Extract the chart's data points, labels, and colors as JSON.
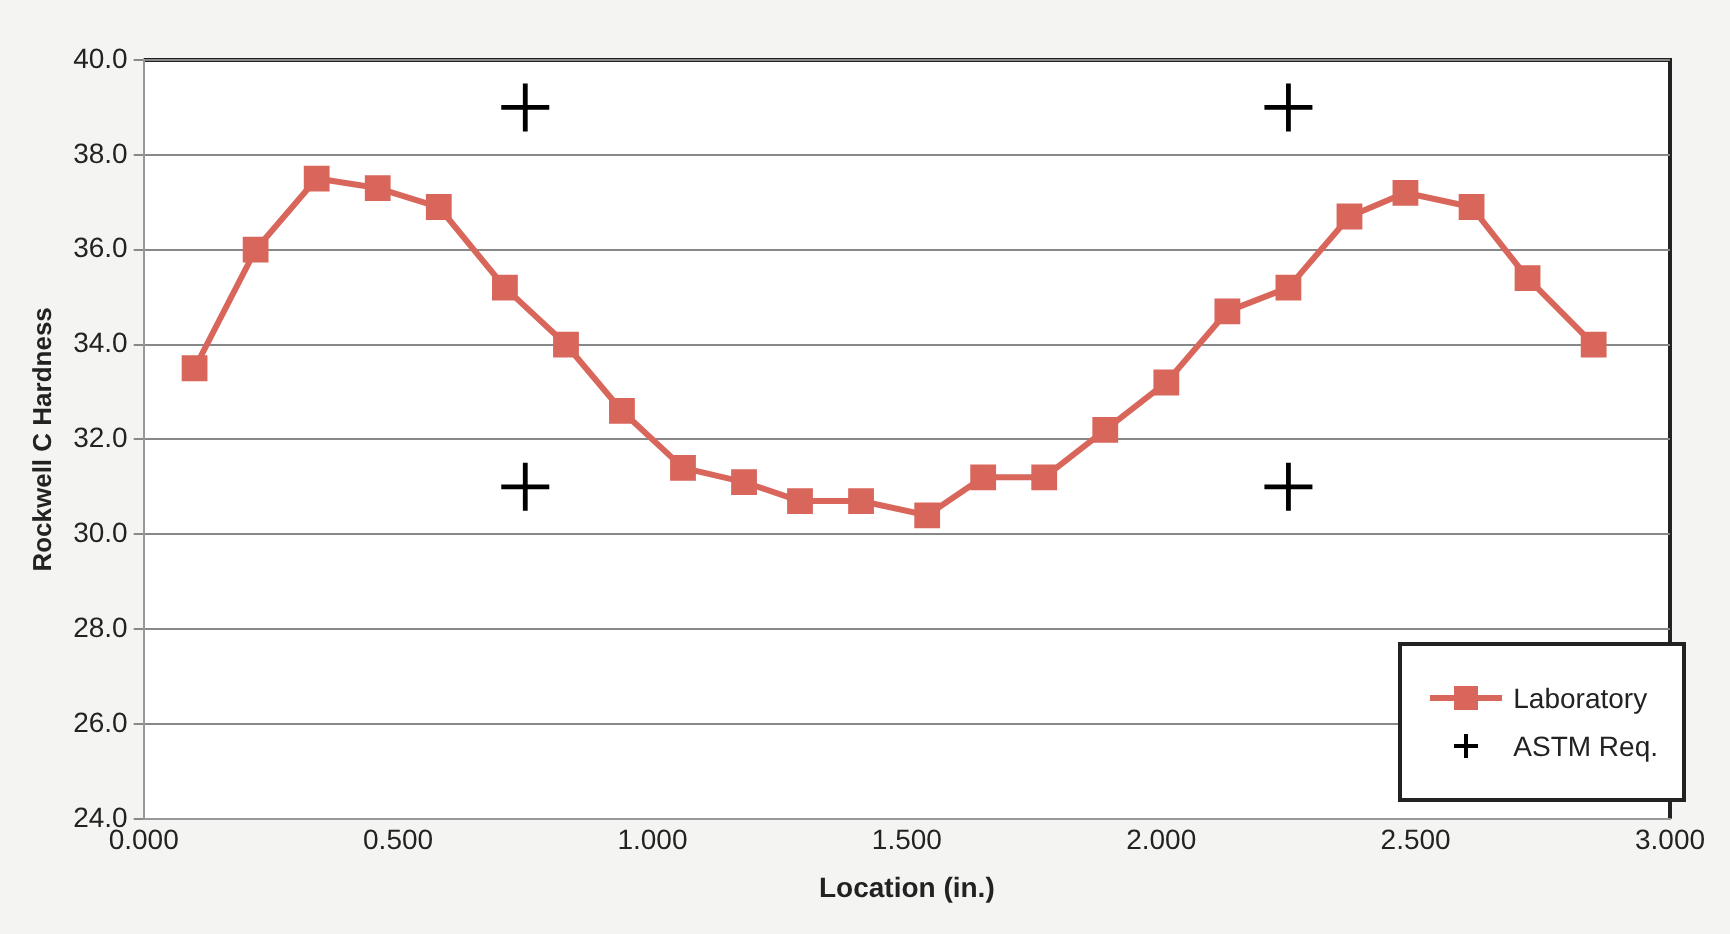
{
  "chart_data": {
    "type": "line",
    "xlabel": "Location (in.)",
    "ylabel": "Rockwell C Hardness",
    "xlim": [
      0,
      3
    ],
    "xticks": [
      {
        "value": 0,
        "label": "0.000"
      },
      {
        "value": 0.5,
        "label": "0.500"
      },
      {
        "value": 1,
        "label": "1.000"
      },
      {
        "value": 1.5,
        "label": "1.500"
      },
      {
        "value": 2,
        "label": "2.000"
      },
      {
        "value": 2.5,
        "label": "2.500"
      },
      {
        "value": 3,
        "label": "3.000"
      }
    ],
    "ylim": [
      24,
      40
    ],
    "yticks": [
      {
        "value": 24,
        "label": "24.0"
      },
      {
        "value": 26,
        "label": "26.0"
      },
      {
        "value": 28,
        "label": "28.0"
      },
      {
        "value": 30,
        "label": "30.0"
      },
      {
        "value": 32,
        "label": "32.0"
      },
      {
        "value": 34,
        "label": "34.0"
      },
      {
        "value": 36,
        "label": "36.0"
      },
      {
        "value": 38,
        "label": "38.0"
      },
      {
        "value": 40,
        "label": "40.0"
      }
    ],
    "grid": "y",
    "legend": "bottom right",
    "series": [
      {
        "name": "Laboratory",
        "type": "line",
        "color": "#d9665b",
        "marker": "square",
        "x": [
          0.1,
          0.22,
          0.34,
          0.46,
          0.58,
          0.71,
          0.83,
          0.94,
          1.06,
          1.18,
          1.29,
          1.41,
          1.54,
          1.65,
          1.77,
          1.89,
          2.01,
          2.13,
          2.25,
          2.37,
          2.48,
          2.61,
          2.72,
          2.85
        ],
        "values": [
          33.5,
          36.0,
          37.5,
          37.3,
          36.9,
          35.2,
          34.0,
          32.6,
          31.4,
          31.1,
          30.7,
          30.7,
          30.4,
          31.2,
          31.2,
          32.2,
          33.2,
          34.7,
          35.2,
          36.7,
          37.2,
          36.9,
          35.4,
          34.0
        ]
      },
      {
        "name": "ASTM Req.",
        "type": "scatter",
        "color": "#000000",
        "marker": "cross",
        "x": [
          0.75,
          2.25,
          0.75,
          2.25
        ],
        "values": [
          39,
          39,
          31,
          31
        ]
      }
    ]
  }
}
